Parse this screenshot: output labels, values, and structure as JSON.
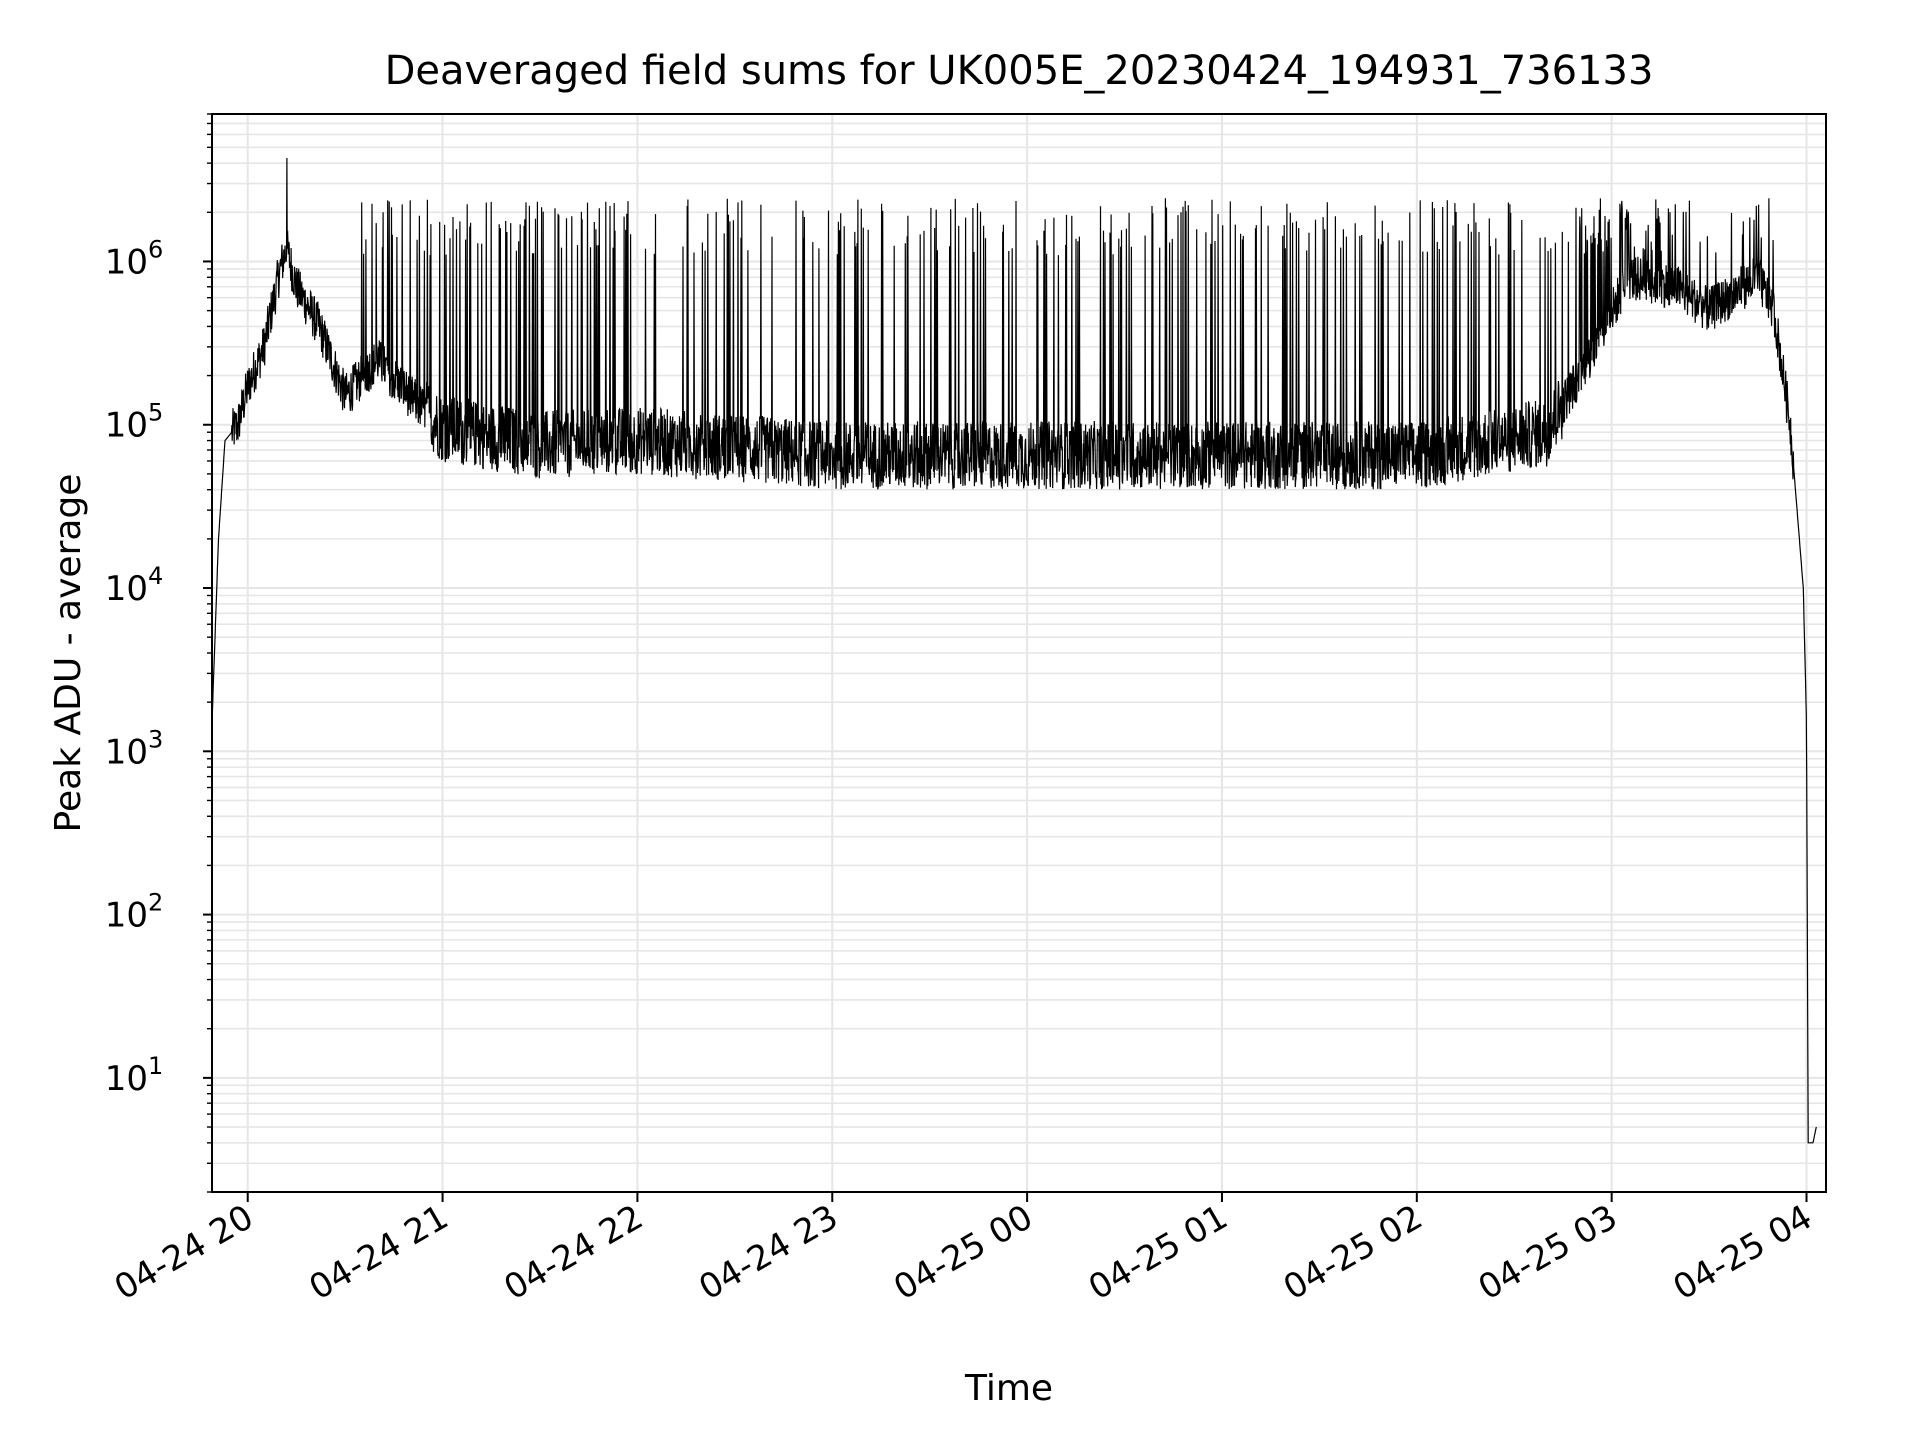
{
  "chart_data": {
    "type": "line",
    "title": "Deaveraged field sums for UK005E_20230424_194931_736133",
    "xlabel": "Time",
    "ylabel": "Peak ADU - average",
    "y_scale": "log",
    "x_range": [
      "2023-04-24 19:49",
      "2023-04-25 04:06"
    ],
    "ylim": [
      2,
      8000000
    ],
    "grid": true,
    "grid_minor": true,
    "line_color": "#000000",
    "grid_color": "#e6e6e6",
    "x_ticks": [
      "04-24 20",
      "04-24 21",
      "04-24 22",
      "04-24 23",
      "04-25 00",
      "04-25 01",
      "04-25 02",
      "04-25 03",
      "04-25 04"
    ],
    "y_ticks": [
      {
        "base": "10",
        "exp": "1"
      },
      {
        "base": "10",
        "exp": "2"
      },
      {
        "base": "10",
        "exp": "3"
      },
      {
        "base": "10",
        "exp": "4"
      },
      {
        "base": "10",
        "exp": "5"
      },
      {
        "base": "10",
        "exp": "6"
      }
    ],
    "series": [
      {
        "baseline_envelope": [
          {
            "time": "2023-04-24 19:49",
            "value": 1500
          },
          {
            "time": "2023-04-24 19:51",
            "value": 20000
          },
          {
            "time": "2023-04-24 19:53",
            "value": 80000
          },
          {
            "time": "2023-04-24 19:57",
            "value": 100000
          },
          {
            "time": "2023-04-24 20:00",
            "value": 170000
          },
          {
            "time": "2023-04-24 20:05",
            "value": 300000
          },
          {
            "time": "2023-04-24 20:10",
            "value": 900000
          },
          {
            "time": "2023-04-24 20:12",
            "value": 1200000
          },
          {
            "time": "2023-04-24 20:15",
            "value": 700000
          },
          {
            "time": "2023-04-24 20:22",
            "value": 400000
          },
          {
            "time": "2023-04-24 20:30",
            "value": 150000
          },
          {
            "time": "2023-04-24 20:40",
            "value": 250000
          },
          {
            "time": "2023-04-24 20:50",
            "value": 150000
          },
          {
            "time": "2023-04-24 21:00",
            "value": 95000
          },
          {
            "time": "2023-04-24 21:30",
            "value": 75000
          },
          {
            "time": "2023-04-24 22:00",
            "value": 80000
          },
          {
            "time": "2023-04-24 23:00",
            "value": 65000
          },
          {
            "time": "2023-04-25 00:00",
            "value": 65000
          },
          {
            "time": "2023-04-25 01:00",
            "value": 65000
          },
          {
            "time": "2023-04-25 02:00",
            "value": 65000
          },
          {
            "time": "2023-04-25 02:40",
            "value": 90000
          },
          {
            "time": "2023-04-25 02:55",
            "value": 300000
          },
          {
            "time": "2023-04-25 03:05",
            "value": 800000
          },
          {
            "time": "2023-04-25 03:20",
            "value": 700000
          },
          {
            "time": "2023-04-25 03:30",
            "value": 500000
          },
          {
            "time": "2023-04-25 03:45",
            "value": 800000
          },
          {
            "time": "2023-04-25 03:50",
            "value": 500000
          },
          {
            "time": "2023-04-25 03:55",
            "value": 100000
          },
          {
            "time": "2023-04-25 03:59",
            "value": 10000
          },
          {
            "time": "2023-04-25 04:00",
            "value": 1500
          },
          {
            "time": "2023-04-25 04:00:30",
            "value": 4
          },
          {
            "time": "2023-04-25 04:02",
            "value": 4
          },
          {
            "time": "2023-04-25 04:03",
            "value": 5
          }
        ],
        "spike_peak_typical": 1700000,
        "spike_peak_max": 4300000,
        "spike_peak_max_time": "2023-04-24 20:12"
      }
    ]
  }
}
